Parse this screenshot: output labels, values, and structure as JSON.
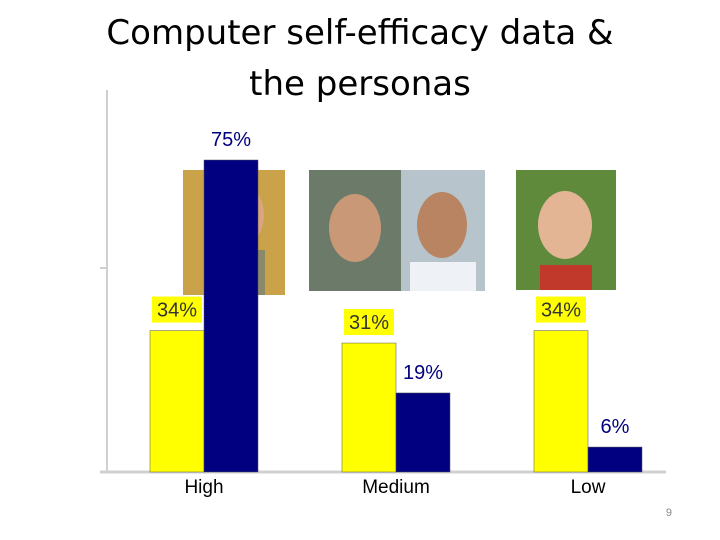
{
  "chart_data": {
    "type": "bar",
    "title": "Computer self-efficacy data & the personas",
    "categories": [
      "High",
      "Medium",
      "Low"
    ],
    "series": [
      {
        "color": "#ffff00",
        "values": [
          34,
          31,
          34
        ],
        "value_labels": [
          "34%",
          "31%",
          "34%"
        ]
      },
      {
        "color": "#000080",
        "values": [
          75,
          19,
          6
        ],
        "value_labels": [
          "75%",
          "19%",
          "6%"
        ]
      }
    ],
    "ylim": [
      0,
      100
    ],
    "page_number": "9"
  }
}
